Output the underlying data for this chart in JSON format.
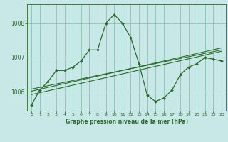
{
  "title": "Graphe pression niveau de la mer (hPa)",
  "background_color": "#c8e8e8",
  "grid_color": "#90c8b8",
  "line_color": "#2d6a2d",
  "marker_color": "#2d6a2d",
  "xlim": [
    -0.5,
    23.5
  ],
  "ylim": [
    1005.45,
    1008.55
  ],
  "yticks": [
    1006,
    1007,
    1008
  ],
  "xticks": [
    0,
    1,
    2,
    3,
    4,
    5,
    6,
    7,
    8,
    9,
    10,
    11,
    12,
    13,
    14,
    15,
    16,
    17,
    18,
    19,
    20,
    21,
    22,
    23
  ],
  "main_x": [
    0,
    1,
    2,
    3,
    4,
    5,
    6,
    7,
    8,
    9,
    10,
    11,
    12,
    13,
    14,
    15,
    16,
    17,
    18,
    19,
    20,
    21,
    22,
    23
  ],
  "main_y": [
    1005.62,
    1006.05,
    1006.3,
    1006.62,
    1006.62,
    1006.72,
    1006.9,
    1007.22,
    1007.22,
    1008.0,
    1008.25,
    1008.0,
    1007.58,
    1006.82,
    1005.9,
    1005.72,
    1005.82,
    1006.05,
    1006.5,
    1006.72,
    1006.82,
    1007.0,
    1006.95,
    1006.9
  ],
  "trend1_x": [
    0,
    23
  ],
  "trend1_y": [
    1005.92,
    1007.18
  ],
  "trend2_x": [
    0,
    23
  ],
  "trend2_y": [
    1006.02,
    1007.28
  ],
  "trend3_x": [
    0,
    23
  ],
  "trend3_y": [
    1006.08,
    1007.22
  ]
}
